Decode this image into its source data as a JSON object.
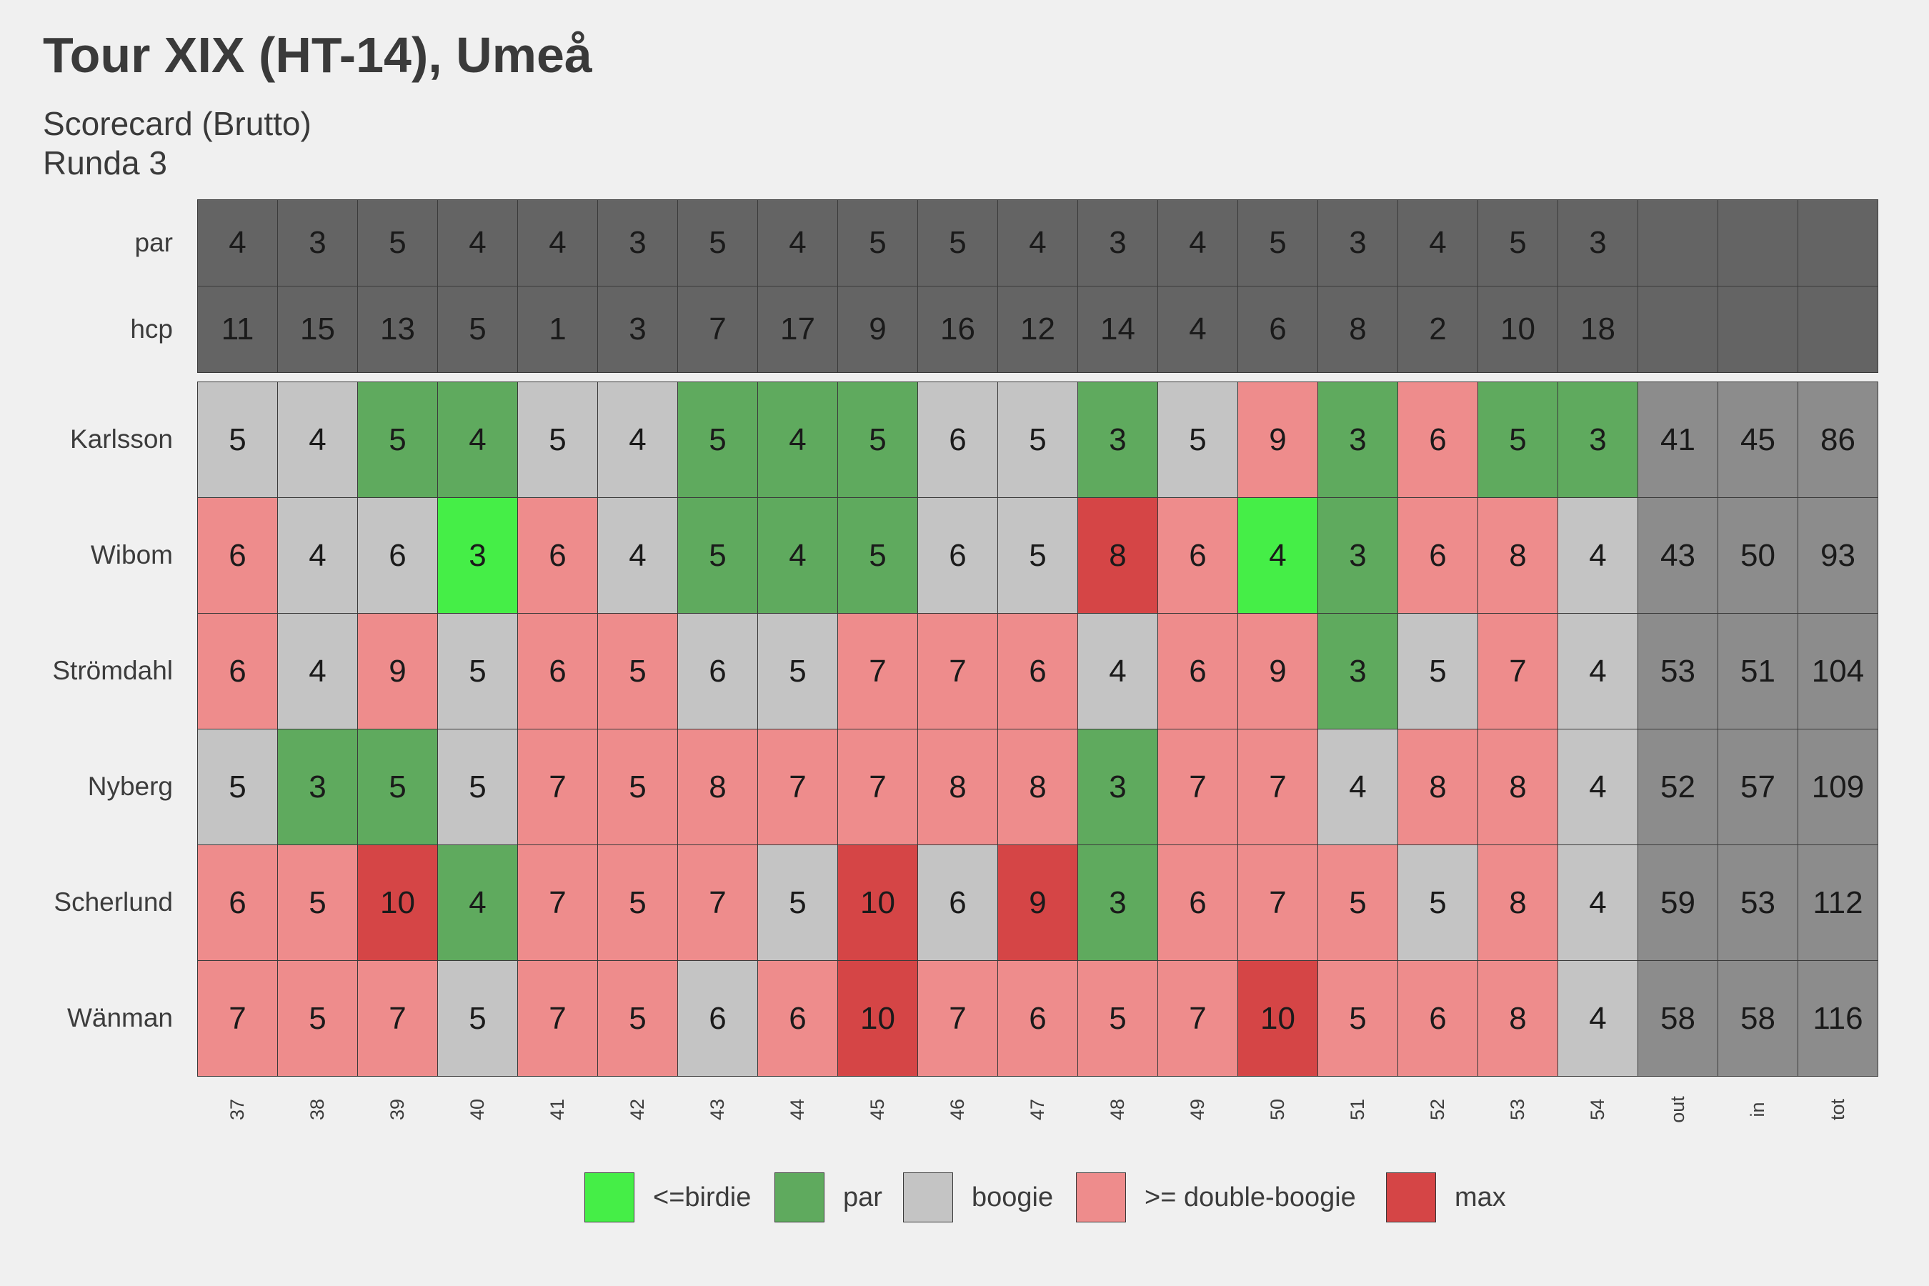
{
  "title": "Tour XIX (HT-14), Umeå",
  "subtitle_line1": "Scorecard (Brutto)",
  "subtitle_line2": "Runda 3",
  "colors": {
    "header": "#646464",
    "totals": "#8c8c8c",
    "birdie": "#45ee47",
    "par": "#5faa5e",
    "boogie": "#c4c4c4",
    "double": "#ee8c8c",
    "max": "#d54546",
    "background": "#f0f0f0"
  },
  "chart_data": {
    "type": "heatmap",
    "columns": [
      "37",
      "38",
      "39",
      "40",
      "41",
      "42",
      "43",
      "44",
      "45",
      "46",
      "47",
      "48",
      "49",
      "50",
      "51",
      "52",
      "53",
      "54",
      "out",
      "in",
      "tot"
    ],
    "header_rows": [
      {
        "label": "par",
        "values": [
          "4",
          "3",
          "5",
          "4",
          "4",
          "3",
          "5",
          "4",
          "5",
          "5",
          "4",
          "3",
          "4",
          "5",
          "3",
          "4",
          "5",
          "3",
          "",
          "",
          ""
        ]
      },
      {
        "label": "hcp",
        "values": [
          "11",
          "15",
          "13",
          "5",
          "1",
          "3",
          "7",
          "17",
          "9",
          "16",
          "12",
          "14",
          "4",
          "6",
          "8",
          "2",
          "10",
          "18",
          "",
          "",
          ""
        ]
      }
    ],
    "players": [
      {
        "name": "Karlsson",
        "scores": [
          5,
          4,
          5,
          4,
          5,
          4,
          5,
          4,
          5,
          6,
          5,
          3,
          5,
          9,
          3,
          6,
          5,
          3
        ],
        "out": 41,
        "in": 45,
        "tot": 86,
        "categories": [
          "boogie",
          "boogie",
          "par",
          "par",
          "boogie",
          "boogie",
          "par",
          "par",
          "par",
          "boogie",
          "boogie",
          "par",
          "boogie",
          "double",
          "par",
          "double",
          "par",
          "par"
        ]
      },
      {
        "name": "Wibom",
        "scores": [
          6,
          4,
          6,
          3,
          6,
          4,
          5,
          4,
          5,
          6,
          5,
          8,
          6,
          4,
          3,
          6,
          8,
          4
        ],
        "out": 43,
        "in": 50,
        "tot": 93,
        "categories": [
          "double",
          "boogie",
          "boogie",
          "birdie",
          "double",
          "boogie",
          "par",
          "par",
          "par",
          "boogie",
          "boogie",
          "max",
          "double",
          "birdie",
          "par",
          "double",
          "double",
          "boogie"
        ]
      },
      {
        "name": "Strömdahl",
        "scores": [
          6,
          4,
          9,
          5,
          6,
          5,
          6,
          5,
          7,
          7,
          6,
          4,
          6,
          9,
          3,
          5,
          7,
          4
        ],
        "out": 53,
        "in": 51,
        "tot": 104,
        "categories": [
          "double",
          "boogie",
          "double",
          "boogie",
          "double",
          "double",
          "boogie",
          "boogie",
          "double",
          "double",
          "double",
          "boogie",
          "double",
          "double",
          "par",
          "boogie",
          "double",
          "boogie"
        ]
      },
      {
        "name": "Nyberg",
        "scores": [
          5,
          3,
          5,
          5,
          7,
          5,
          8,
          7,
          7,
          8,
          8,
          3,
          7,
          7,
          4,
          8,
          8,
          4
        ],
        "out": 52,
        "in": 57,
        "tot": 109,
        "categories": [
          "boogie",
          "par",
          "par",
          "boogie",
          "double",
          "double",
          "double",
          "double",
          "double",
          "double",
          "double",
          "par",
          "double",
          "double",
          "boogie",
          "double",
          "double",
          "boogie"
        ]
      },
      {
        "name": "Scherlund",
        "scores": [
          6,
          5,
          10,
          4,
          7,
          5,
          7,
          5,
          10,
          6,
          9,
          3,
          6,
          7,
          5,
          5,
          8,
          4
        ],
        "out": 59,
        "in": 53,
        "tot": 112,
        "categories": [
          "double",
          "double",
          "max",
          "par",
          "double",
          "double",
          "double",
          "boogie",
          "max",
          "boogie",
          "max",
          "par",
          "double",
          "double",
          "double",
          "boogie",
          "double",
          "boogie"
        ]
      },
      {
        "name": "Wänman",
        "scores": [
          7,
          5,
          7,
          5,
          7,
          5,
          6,
          6,
          10,
          7,
          6,
          5,
          7,
          10,
          5,
          6,
          8,
          4
        ],
        "out": 58,
        "in": 58,
        "tot": 116,
        "categories": [
          "double",
          "double",
          "double",
          "boogie",
          "double",
          "double",
          "boogie",
          "double",
          "max",
          "double",
          "double",
          "double",
          "double",
          "max",
          "double",
          "double",
          "double",
          "boogie"
        ]
      }
    ]
  },
  "legend": [
    {
      "key": "birdie",
      "label": "<=birdie"
    },
    {
      "key": "par",
      "label": "par"
    },
    {
      "key": "boogie",
      "label": "boogie"
    },
    {
      "key": "double",
      "label": ">= double-boogie"
    },
    {
      "key": "max",
      "label": "max"
    }
  ]
}
